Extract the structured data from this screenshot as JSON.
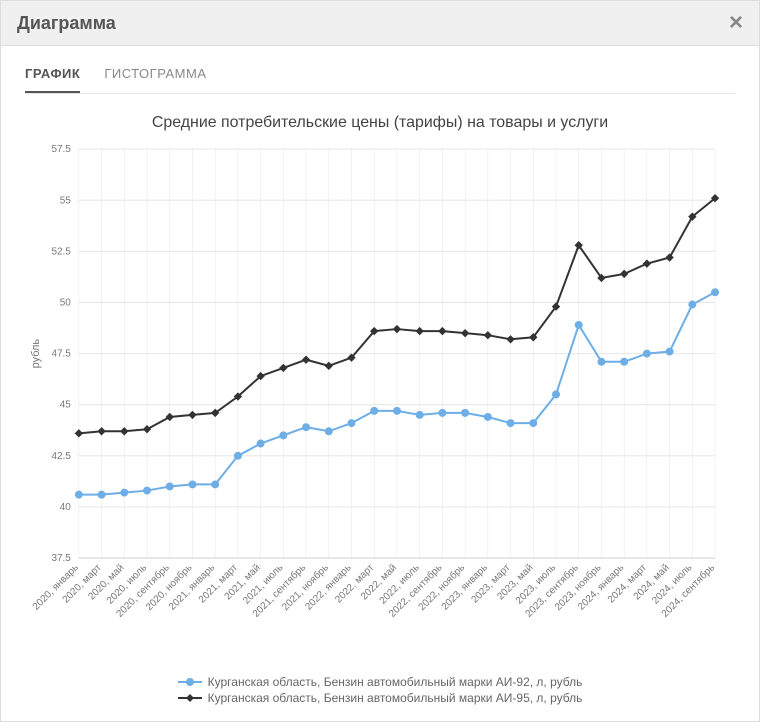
{
  "modal": {
    "title": "Диаграмма",
    "close_label": "×"
  },
  "tabs": [
    {
      "key": "graph",
      "label": "ГРАФИК",
      "active": true
    },
    {
      "key": "histogram",
      "label": "ГИСТОГРАММА",
      "active": false
    }
  ],
  "chart": {
    "type": "line",
    "title": "Средние потребительские цены (тарифы) на товары и услуги",
    "title_fontsize": 16,
    "title_color": "#444444",
    "ylabel": "рубль",
    "ylabel_fontsize": 11,
    "background_color": "#ffffff",
    "grid_color": "#e6e6e6",
    "axis_color": "#cccccc",
    "tick_label_color": "#777777",
    "tick_fontsize": 10,
    "line_width": 2,
    "marker_radius": 3.5,
    "ylim": [
      37.5,
      57.5
    ],
    "ytick_step": 2.5,
    "x_labels": [
      "2020, январь",
      "2020, март",
      "2020, май",
      "2020, июль",
      "2020, сентябрь",
      "2020, ноябрь",
      "2021, январь",
      "2021, март",
      "2021, май",
      "2021, июль",
      "2021, сентябрь",
      "2021, ноябрь",
      "2022, январь",
      "2022, март",
      "2022, май",
      "2022, июль",
      "2022, сентябрь",
      "2022, ноябрь",
      "2023, январь",
      "2023, март",
      "2023, май",
      "2023, июль",
      "2023, сентябрь",
      "2023, ноябрь",
      "2024, январь",
      "2024, март",
      "2024, май",
      "2024, июль",
      "2024, сентябрь"
    ],
    "series": [
      {
        "name": "Курганская область, Бензин автомобильный марки АИ-92, л, рубль",
        "color": "#6eaee6",
        "marker_fill": "#6eaee6",
        "marker_style": "circle",
        "values": [
          40.6,
          40.6,
          40.7,
          40.8,
          41.0,
          41.1,
          41.1,
          42.5,
          43.1,
          43.5,
          43.9,
          43.7,
          44.1,
          44.7,
          44.7,
          44.5,
          44.6,
          44.6,
          44.4,
          44.1,
          44.1,
          45.5,
          48.9,
          47.1,
          47.1,
          47.5,
          47.6,
          49.9,
          50.5
        ]
      },
      {
        "name": "Курганская область, Бензин автомобильный марки АИ-95, л, рубль",
        "color": "#333333",
        "marker_fill": "#333333",
        "marker_style": "diamond",
        "values": [
          43.6,
          43.7,
          43.7,
          43.8,
          44.4,
          44.5,
          44.6,
          45.4,
          46.4,
          46.8,
          47.2,
          46.9,
          47.3,
          48.6,
          48.7,
          48.6,
          48.6,
          48.5,
          48.4,
          48.2,
          48.3,
          49.8,
          52.8,
          51.2,
          51.4,
          51.9,
          52.2,
          54.2,
          55.1
        ]
      }
    ]
  }
}
